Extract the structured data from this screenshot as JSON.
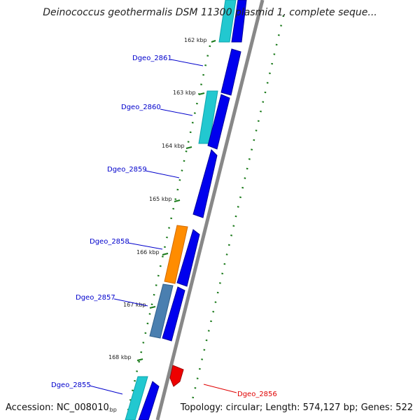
{
  "title": "Deinococcus geothermalis DSM 11300 plasmid 1, complete seque...",
  "footer": {
    "accession": "Accession: NC_008010",
    "topology": "Topology: circular; Length: 574,127 bp; Genes: 522"
  },
  "ticks": [
    "162 kbp",
    "163 kbp",
    "164 kbp",
    "165 kbp",
    "166 kbp",
    "167 kbp",
    "168 kbp",
    "kbp"
  ],
  "genes": [
    {
      "id": "g2861",
      "label": "Dgeo_2861",
      "color": "#0000cc"
    },
    {
      "id": "g2860",
      "label": "Dgeo_2860",
      "color": "#0000cc"
    },
    {
      "id": "g2859",
      "label": "Dgeo_2859",
      "color": "#0000cc"
    },
    {
      "id": "g2858",
      "label": "Dgeo_2858",
      "color": "#0000cc"
    },
    {
      "id": "g2857",
      "label": "Dgeo_2857",
      "color": "#0000cc"
    },
    {
      "id": "g2855",
      "label": "Dgeo_2855",
      "color": "#0000cc"
    },
    {
      "id": "g2856",
      "label": "Dgeo_2856",
      "color": "#e00000"
    }
  ],
  "colors": {
    "cds": "#0000ee",
    "feature_cyan": "#22c8d0",
    "feature_orange": "#ff8c00",
    "feature_steel": "#4a7fb0",
    "reverse_cds": "#ee0000",
    "backbone": "#888888",
    "gc_dots": "#1a7a1a"
  }
}
